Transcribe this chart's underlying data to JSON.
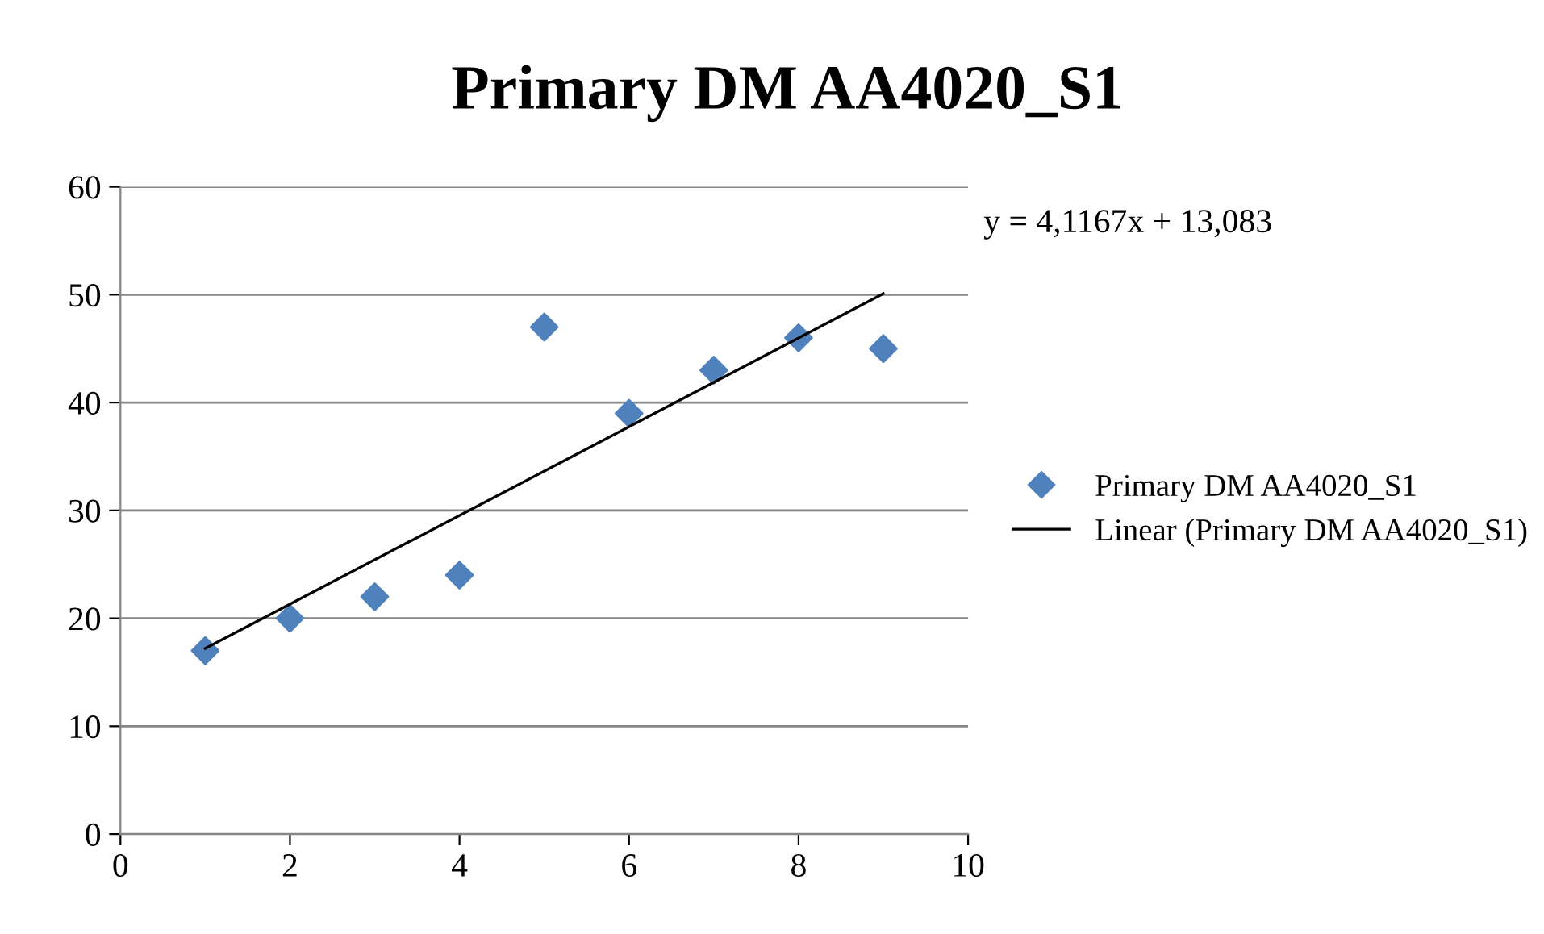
{
  "chart_data": {
    "type": "scatter",
    "title": "Primary DM AA4020_S1",
    "x": [
      1,
      2,
      3,
      4,
      5,
      6,
      7,
      8,
      9
    ],
    "series": [
      {
        "name": "Primary DM AA4020_S1",
        "color": "#4f81bd",
        "marker": "diamond",
        "values": [
          17,
          20,
          22,
          24,
          47,
          39,
          43,
          46,
          45
        ]
      },
      {
        "name": "Linear (Primary DM AA4020_S1)",
        "type": "line",
        "color": "#000000",
        "line_style": "solid",
        "marker": "none",
        "x": [
          1,
          9
        ],
        "values": [
          17.2,
          50.1
        ]
      }
    ],
    "annotations": [
      "y = 4,1167x + 13,083"
    ],
    "xlim": [
      0,
      10
    ],
    "xticks": [
      0,
      2,
      4,
      6,
      8,
      10
    ],
    "ylim": [
      0,
      60
    ],
    "yticks": [
      0,
      10,
      20,
      30,
      40,
      50,
      60
    ],
    "grid": "y",
    "legend": "right"
  }
}
